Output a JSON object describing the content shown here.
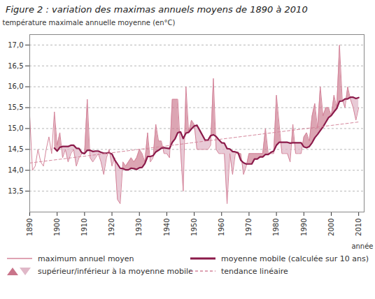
{
  "chart_data": {
    "type": "line",
    "title": "Figure 2 : variation des maximas annuels moyens de 1890 à 2010",
    "xlabel": "année",
    "ylabel": "température maximale annuelle moyenne (en°C)",
    "x": [
      1890,
      1891,
      1892,
      1893,
      1894,
      1895,
      1896,
      1897,
      1898,
      1899,
      1900,
      1901,
      1902,
      1903,
      1904,
      1905,
      1906,
      1907,
      1908,
      1909,
      1910,
      1911,
      1912,
      1913,
      1914,
      1915,
      1916,
      1917,
      1918,
      1919,
      1920,
      1921,
      1922,
      1923,
      1924,
      1925,
      1926,
      1927,
      1928,
      1929,
      1930,
      1931,
      1932,
      1933,
      1934,
      1935,
      1936,
      1937,
      1938,
      1939,
      1940,
      1941,
      1942,
      1943,
      1944,
      1945,
      1946,
      1947,
      1948,
      1949,
      1950,
      1951,
      1952,
      1953,
      1954,
      1955,
      1956,
      1957,
      1958,
      1959,
      1960,
      1961,
      1962,
      1963,
      1964,
      1965,
      1966,
      1967,
      1968,
      1969,
      1970,
      1971,
      1972,
      1973,
      1974,
      1975,
      1976,
      1977,
      1978,
      1979,
      1980,
      1981,
      1982,
      1983,
      1984,
      1985,
      1986,
      1987,
      1988,
      1989,
      1990,
      1991,
      1992,
      1993,
      1994,
      1995,
      1996,
      1997,
      1998,
      1999,
      2000,
      2001,
      2002,
      2003,
      2004,
      2005,
      2006,
      2007,
      2008,
      2009,
      2010
    ],
    "series": [
      {
        "name": "maximum annuel moyen",
        "color": "#d4849a",
        "line_style": "solid",
        "values": [
          15.3,
          14.0,
          14.1,
          14.5,
          14.2,
          14.1,
          14.5,
          14.8,
          14.4,
          15.4,
          14.6,
          14.9,
          14.3,
          14.5,
          14.2,
          14.4,
          14.5,
          14.1,
          14.3,
          14.4,
          14.4,
          15.7,
          14.3,
          14.2,
          14.3,
          14.4,
          14.2,
          13.9,
          14.3,
          14.5,
          14.1,
          14.3,
          13.3,
          13.2,
          14.2,
          14.1,
          14.2,
          14.3,
          14.2,
          14.3,
          14.5,
          14.4,
          14.2,
          14.9,
          14.2,
          14.3,
          15.1,
          14.7,
          14.7,
          14.4,
          14.4,
          14.3,
          15.7,
          15.7,
          15.7,
          14.5,
          13.5,
          16.0,
          14.9,
          15.2,
          15.1,
          14.5,
          14.5,
          14.5,
          14.5,
          14.5,
          14.6,
          16.2,
          14.5,
          14.4,
          14.4,
          14.4,
          13.2,
          14.4,
          13.9,
          14.4,
          14.4,
          14.4,
          13.9,
          14.1,
          14.4,
          14.4,
          14.4,
          14.4,
          14.4,
          14.4,
          15.0,
          14.4,
          14.4,
          14.4,
          15.8,
          15.1,
          14.4,
          14.4,
          14.4,
          14.2,
          15.1,
          14.4,
          14.4,
          14.4,
          14.8,
          14.9,
          14.7,
          15.3,
          15.6,
          15.0,
          16.0,
          15.3,
          15.5,
          15.5,
          15.3,
          15.8,
          15.5,
          17.0,
          15.7,
          15.5,
          16.0,
          15.7,
          15.5,
          15.2,
          15.5
        ]
      },
      {
        "name": "moyenne mobile (calculée sur 10 ans)",
        "color": "#8b1a4a",
        "line_style": "solid",
        "values": [
          null,
          null,
          null,
          null,
          null,
          null,
          null,
          null,
          null,
          14.53,
          14.46,
          14.55,
          14.57,
          14.57,
          14.57,
          14.6,
          14.6,
          14.53,
          14.52,
          14.42,
          14.4,
          14.48,
          14.48,
          14.45,
          14.46,
          14.46,
          14.43,
          14.41,
          14.41,
          14.42,
          14.39,
          14.25,
          14.15,
          14.05,
          14.04,
          14.01,
          14.01,
          14.05,
          14.04,
          14.02,
          14.06,
          14.07,
          14.16,
          14.33,
          14.33,
          14.35,
          14.44,
          14.48,
          14.53,
          14.54,
          14.53,
          14.52,
          14.67,
          14.75,
          14.9,
          14.92,
          14.76,
          14.89,
          14.91,
          14.99,
          15.06,
          15.08,
          14.96,
          14.84,
          14.72,
          14.72,
          14.83,
          14.85,
          14.81,
          14.73,
          14.66,
          14.65,
          14.52,
          14.51,
          14.45,
          14.44,
          14.42,
          14.24,
          14.18,
          14.15,
          14.15,
          14.15,
          14.27,
          14.27,
          14.32,
          14.32,
          14.38,
          14.38,
          14.43,
          14.46,
          14.6,
          14.67,
          14.67,
          14.67,
          14.67,
          14.65,
          14.66,
          14.66,
          14.66,
          14.66,
          14.56,
          14.54,
          14.57,
          14.66,
          14.78,
          14.86,
          14.95,
          15.04,
          15.15,
          15.26,
          15.31,
          15.4,
          15.48,
          15.65,
          15.66,
          15.71,
          15.71,
          15.75,
          15.75,
          15.72,
          15.74
        ]
      },
      {
        "name": "supérieur/inférieur à la moyenne mobile",
        "type": "difference",
        "colors": [
          "#c9748a",
          "#e0b8c8"
        ]
      },
      {
        "name": "tendance linéaire",
        "color": "#d4849a",
        "line_style": "dashed",
        "values": [
          14.1739,
          14.1821,
          14.1903,
          14.1985,
          14.2067,
          14.2149,
          14.2231,
          14.2313,
          14.2394,
          14.2476,
          14.2558,
          14.264,
          14.2722,
          14.2804,
          14.2886,
          14.2968,
          14.305,
          14.3132,
          14.3213,
          14.3295,
          14.3377,
          14.3459,
          14.3541,
          14.3623,
          14.3705,
          14.3787,
          14.3869,
          14.395,
          14.4032,
          14.4114,
          14.4196,
          14.4278,
          14.436,
          14.4442,
          14.4524,
          14.4606,
          14.4687,
          14.4769,
          14.4851,
          14.4933,
          14.5015,
          14.5097,
          14.5179,
          14.5261,
          14.5343,
          14.5425,
          14.5506,
          14.5588,
          14.567,
          14.5752,
          14.5834,
          14.5916,
          14.5998,
          14.608,
          14.6162,
          14.6243,
          14.6325,
          14.6407,
          14.6489,
          14.6571,
          14.6653,
          14.6735,
          14.6817,
          14.6899,
          14.698,
          14.7062,
          14.7144,
          14.7226,
          14.7308,
          14.739,
          14.7472,
          14.7554,
          14.7636,
          14.7717,
          14.7799,
          14.7881,
          14.7963,
          14.8045,
          14.8127,
          14.8209,
          14.8291,
          14.8373,
          14.8455,
          14.8536,
          14.8618,
          14.87,
          14.8782,
          14.8864,
          14.8946,
          14.9028,
          14.911,
          14.9192,
          14.9273,
          14.9355,
          14.9437,
          14.9519,
          14.9601,
          14.9683,
          14.9765,
          14.9847,
          14.9929,
          15.001,
          15.0092,
          15.0174,
          15.0256,
          15.0338,
          15.042,
          15.0502,
          15.0584,
          15.0666,
          15.0748,
          15.0829,
          15.0911,
          15.0993,
          15.1075,
          15.1157,
          15.1239,
          15.1321,
          15.1403,
          15.1485,
          15.1566
        ]
      }
    ],
    "xlim": [
      1890,
      2012
    ],
    "xticks": [
      1890,
      1900,
      1910,
      1920,
      1930,
      1940,
      1950,
      1960,
      1970,
      1980,
      1990,
      2000,
      2010
    ],
    "ylim": [
      13.0,
      17.25
    ],
    "yticks": [
      {
        "value": 13.5,
        "label": "13,5"
      },
      {
        "value": 14.0,
        "label": "14,0"
      },
      {
        "value": 14.5,
        "label": "14,5"
      },
      {
        "value": 15.0,
        "label": "15,0"
      },
      {
        "value": 15.5,
        "label": "15,5"
      },
      {
        "value": 16.0,
        "label": "16,0"
      },
      {
        "value": 16.5,
        "label": "16,5"
      },
      {
        "value": 17.0,
        "label": "17,0"
      }
    ],
    "grid": true,
    "legend": "bottom"
  }
}
